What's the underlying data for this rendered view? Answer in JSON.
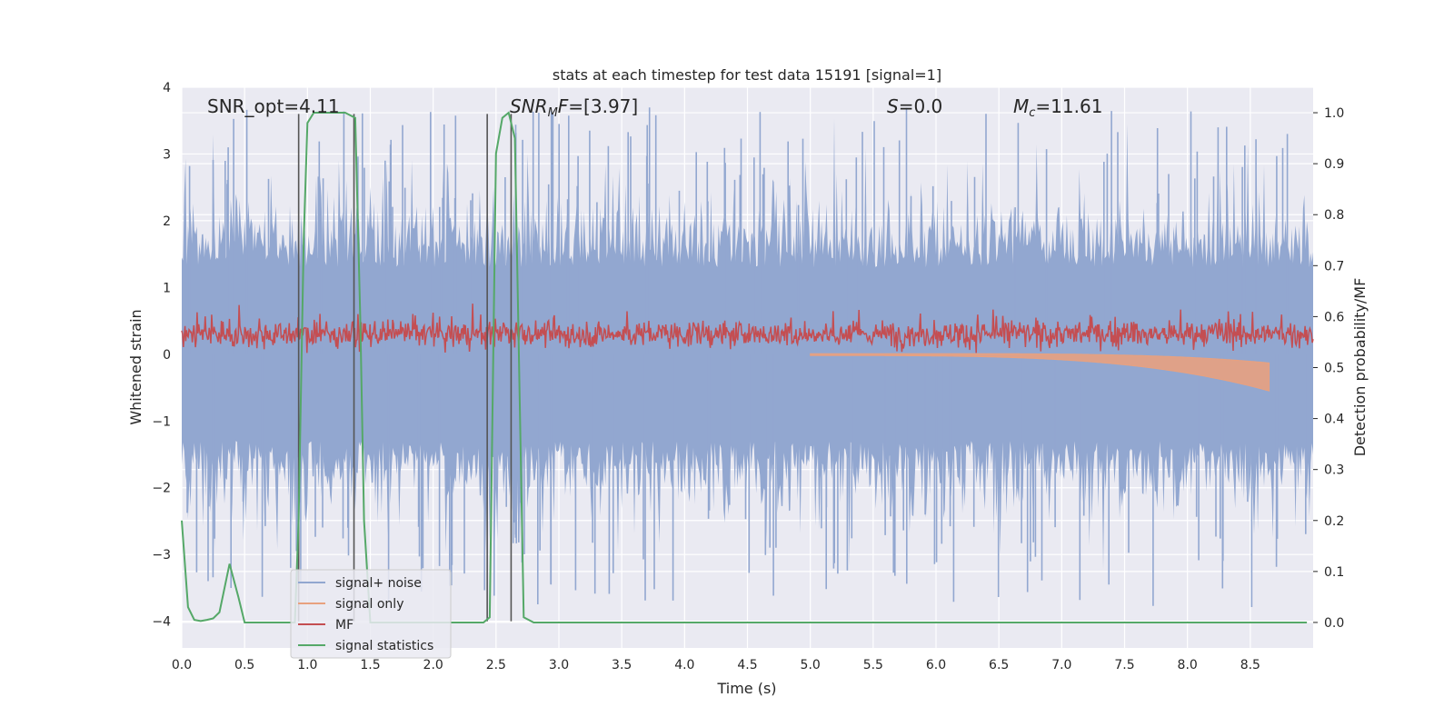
{
  "chart_data": {
    "type": "line",
    "title": "stats at each timestep for test data 15191 [signal=1]",
    "xlabel": "Time (s)",
    "ylabel": "Whitened strain",
    "ylabel_right": "Detection probability/MF",
    "xlim": [
      0.0,
      9.0
    ],
    "ylim": [
      -4.4,
      4.0
    ],
    "ylim_right": [
      -0.05,
      1.05
    ],
    "xticks": [
      "0.0",
      "0.5",
      "1.0",
      "1.5",
      "2.0",
      "2.5",
      "3.0",
      "3.5",
      "4.0",
      "4.5",
      "5.0",
      "5.5",
      "6.0",
      "6.5",
      "7.0",
      "7.5",
      "8.0",
      "8.5"
    ],
    "yticks": [
      "4",
      "3",
      "2",
      "1",
      "0",
      "−1",
      "−2",
      "−3",
      "−4"
    ],
    "yticks_right": [
      "1.0",
      "0.9",
      "0.8",
      "0.7",
      "0.6",
      "0.5",
      "0.4",
      "0.3",
      "0.2",
      "0.1",
      "0.0"
    ],
    "grid": true,
    "legend_position": "lower-left",
    "annotations": {
      "snr_opt": "SNR_opt=4.11",
      "snr_mf_prefix": "SNR",
      "snr_mf_sub": "M",
      "snr_mf_mid": "F",
      "snr_mf_suffix": "=[3.97]",
      "s_var": "S",
      "s_value": "=0.0",
      "mc_var": "M",
      "mc_sub": "c",
      "mc_value": "=11.61"
    },
    "series": [
      {
        "name": "signal+ noise",
        "color": "#92a7d0",
        "style": "dense noisy trace, roughly -3.5 to 3.8 about 0"
      },
      {
        "name": "signal only",
        "color": "#e8a17f",
        "style": "chirp grows after 5.5 s, peak near 8.6 s (to about -0.6)"
      },
      {
        "name": "MF",
        "color": "#c44e52",
        "style": "noisy trace between about 0.0 and 0.9"
      },
      {
        "name": "signal statistics",
        "color": "#55a868",
        "x": [
          0.0,
          0.05,
          0.1,
          0.15,
          0.2,
          0.25,
          0.3,
          0.38,
          0.45,
          0.5,
          0.9,
          0.93,
          0.97,
          1.0,
          1.05,
          1.1,
          1.3,
          1.38,
          1.42,
          1.45,
          1.5,
          2.4,
          2.45,
          2.5,
          2.55,
          2.6,
          2.65,
          2.72,
          2.8,
          8.95
        ],
        "y": [
          0.2,
          0.03,
          0.005,
          0.003,
          0.005,
          0.008,
          0.02,
          0.115,
          0.05,
          0.0,
          0.0,
          0.2,
          0.75,
          0.98,
          1.0,
          1.0,
          1.0,
          0.99,
          0.6,
          0.2,
          0.0,
          0.0,
          0.01,
          0.92,
          0.99,
          1.0,
          0.95,
          0.01,
          0.0,
          0.0
        ],
        "axis": "right"
      }
    ],
    "vertical_markers_x": [
      0.93,
      1.37,
      2.43,
      2.62
    ]
  }
}
